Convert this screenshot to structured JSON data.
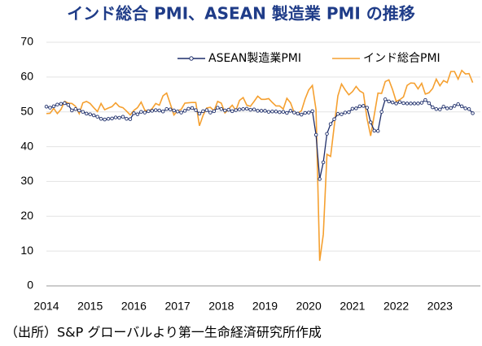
{
  "chart_data": {
    "type": "line",
    "title": "インド総合 PMI、ASEAN 製造業 PMI の推移",
    "source": "（出所）S&P グローバルより第一生命経済研究所作成",
    "categories": [
      "2014",
      null,
      null,
      null,
      null,
      null,
      null,
      null,
      null,
      null,
      null,
      null,
      "2015",
      null,
      null,
      null,
      null,
      null,
      null,
      null,
      null,
      null,
      null,
      null,
      "2016",
      null,
      null,
      null,
      null,
      null,
      null,
      null,
      null,
      null,
      null,
      null,
      "2017",
      null,
      null,
      null,
      null,
      null,
      null,
      null,
      null,
      null,
      null,
      null,
      "2018",
      null,
      null,
      null,
      null,
      null,
      null,
      null,
      null,
      null,
      null,
      null,
      "2019",
      null,
      null,
      null,
      null,
      null,
      null,
      null,
      null,
      null,
      null,
      null,
      "2020",
      null,
      null,
      null,
      null,
      null,
      null,
      null,
      null,
      null,
      null,
      null,
      "2021",
      null,
      null,
      null,
      null,
      null,
      null,
      null,
      null,
      null,
      null,
      null,
      "2022",
      null,
      null,
      null,
      null,
      null,
      null,
      null,
      null,
      null,
      null,
      null,
      "2023",
      null,
      null,
      null,
      null,
      null,
      null,
      null,
      null,
      null
    ],
    "series": [
      {
        "name": "ASEAN製造業PMI",
        "color": "#1f2f6b",
        "marker": "circle",
        "values": [
          51.5,
          51.2,
          51.6,
          52.1,
          52.3,
          52.5,
          52.0,
          50.4,
          50.8,
          50.4,
          50.0,
          49.5,
          49.3,
          49.0,
          48.6,
          48.0,
          47.8,
          48.0,
          48.1,
          48.4,
          48.3,
          48.6,
          48.0,
          47.9,
          49.6,
          49.3,
          50.0,
          49.8,
          50.2,
          50.3,
          50.5,
          50.4,
          50.1,
          50.8,
          50.7,
          50.4,
          50.1,
          49.8,
          50.3,
          50.9,
          51.1,
          50.5,
          49.5,
          50.2,
          50.5,
          49.8,
          50.2,
          51.2,
          50.8,
          50.4,
          50.6,
          50.2,
          50.5,
          50.7,
          50.8,
          50.9,
          50.6,
          50.7,
          50.3,
          50.3,
          50.3,
          50.0,
          50.1,
          50.1,
          49.9,
          50.0,
          49.7,
          50.3,
          49.8,
          49.5,
          49.2,
          49.7,
          49.8,
          50.2,
          43.4,
          30.7,
          35.5,
          43.7,
          46.5,
          47.9,
          49.4,
          49.3,
          49.8,
          49.9,
          50.9,
          51.0,
          51.6,
          51.7,
          51.2,
          47.0,
          44.6,
          44.5,
          50.0,
          53.6,
          53.0,
          52.7,
          52.4,
          52.8,
          52.5,
          52.4,
          52.4,
          52.4,
          52.4,
          52.6,
          53.4,
          52.5,
          51.3,
          50.8,
          50.7,
          51.5,
          51.0,
          51.1,
          51.7,
          52.2,
          51.6,
          51.0,
          50.8,
          49.6
        ]
      },
      {
        "name": "インド総合PMI",
        "color": "#f5a030",
        "values": [
          49.5,
          49.6,
          51.0,
          49.5,
          50.7,
          53.0,
          52.5,
          52.4,
          51.6,
          49.5,
          52.6,
          53.0,
          52.4,
          51.2,
          50.1,
          52.4,
          50.6,
          51.1,
          51.5,
          52.6,
          51.5,
          51.2,
          50.2,
          49.1,
          50.4,
          51.2,
          52.8,
          50.5,
          50.2,
          50.9,
          52.4,
          51.9,
          54.6,
          55.4,
          52.3,
          49.1,
          50.3,
          50.7,
          52.5,
          52.6,
          52.7,
          52.7,
          46.0,
          49.0,
          51.1,
          51.3,
          50.3,
          53.0,
          52.5,
          49.7,
          50.8,
          51.9,
          50.4,
          53.3,
          54.1,
          51.9,
          51.6,
          53.0,
          54.5,
          53.6,
          53.6,
          53.8,
          52.7,
          51.7,
          51.7,
          50.8,
          53.9,
          52.6,
          49.8,
          49.6,
          50.3,
          53.7,
          56.3,
          57.6,
          50.6,
          7.2,
          14.8,
          37.8,
          37.2,
          46.0,
          54.6,
          58.0,
          56.3,
          54.9,
          55.8,
          57.3,
          56.0,
          55.4,
          48.1,
          43.1,
          49.2,
          55.4,
          55.3,
          58.7,
          59.2,
          56.4,
          53.0,
          53.5,
          54.3,
          57.6,
          58.3,
          58.2,
          56.6,
          58.2,
          55.1,
          55.5,
          56.7,
          59.4,
          57.5,
          59.0,
          58.4,
          61.6,
          61.6,
          59.4,
          61.9,
          60.9,
          61.0,
          58.4
        ]
      }
    ],
    "ylim": [
      0,
      70
    ],
    "yticks": [
      0,
      10,
      20,
      30,
      40,
      50,
      60,
      70
    ],
    "grid": true,
    "legend": "upper right"
  }
}
